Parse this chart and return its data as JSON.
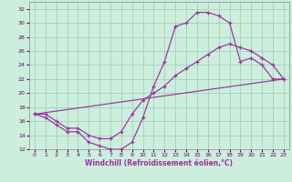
{
  "xlabel": "Windchill (Refroidissement éolien,°C)",
  "background_color": "#cceedd",
  "grid_color": "#aaccbb",
  "line_color": "#993399",
  "xlim": [
    -0.5,
    23.5
  ],
  "ylim": [
    12,
    33
  ],
  "xticks": [
    0,
    1,
    2,
    3,
    4,
    5,
    6,
    7,
    8,
    9,
    10,
    11,
    12,
    13,
    14,
    15,
    16,
    17,
    18,
    19,
    20,
    21,
    22,
    23
  ],
  "yticks": [
    12,
    14,
    16,
    18,
    20,
    22,
    24,
    26,
    28,
    30,
    32
  ],
  "line1_x": [
    0,
    1,
    2,
    3,
    4,
    5,
    6,
    7,
    8,
    9,
    10,
    11,
    12,
    13,
    14,
    15,
    16,
    17,
    18,
    19,
    20,
    21,
    22,
    23
  ],
  "line1_y": [
    17,
    16.5,
    15.5,
    14.5,
    14.5,
    13,
    12.5,
    12,
    12,
    13,
    16.5,
    21,
    24.5,
    29.5,
    30,
    31.5,
    31.5,
    31,
    30,
    24.5,
    25,
    24,
    22,
    22
  ],
  "line2_x": [
    0,
    1,
    2,
    3,
    4,
    5,
    6,
    7,
    8,
    9,
    10,
    11,
    12,
    13,
    14,
    15,
    16,
    17,
    18,
    19,
    20,
    21,
    22,
    23
  ],
  "line2_y": [
    17,
    17,
    16,
    15,
    15,
    14,
    13.5,
    13.5,
    14.5,
    17,
    19,
    20,
    21,
    22.5,
    23.5,
    24.5,
    25.5,
    26.5,
    27,
    26.5,
    26,
    25,
    24,
    22
  ],
  "line3_x": [
    0,
    23
  ],
  "line3_y": [
    17,
    22
  ]
}
